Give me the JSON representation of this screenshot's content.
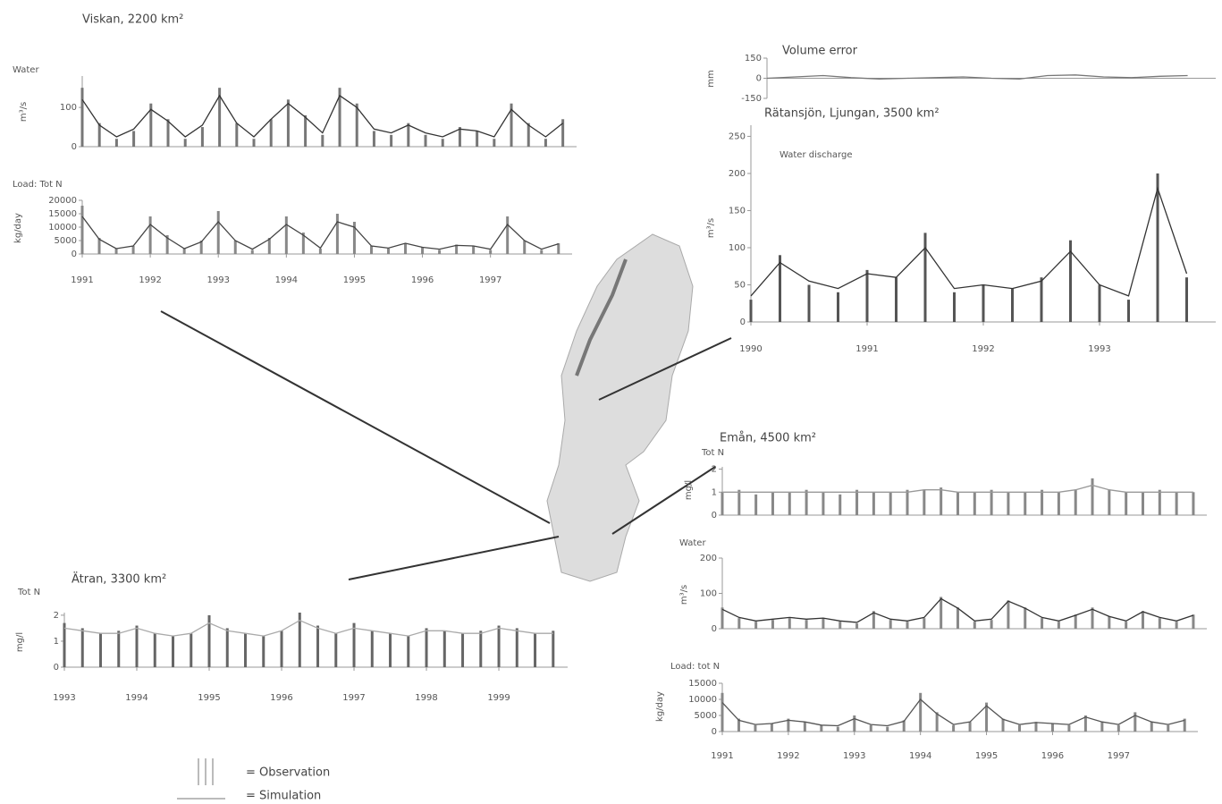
{
  "chart_data": [
    {
      "type": "line",
      "title": "Viskan, 2200 km²",
      "label": "Water",
      "ylabel": "m³/s",
      "xlim": [
        1991,
        1998.2
      ],
      "ylim": [
        0,
        180
      ],
      "yticks": [
        0,
        100
      ],
      "x": [
        1991,
        1991.25,
        1991.5,
        1991.75,
        1992,
        1992.25,
        1992.5,
        1992.75,
        1993,
        1993.25,
        1993.5,
        1993.75,
        1994,
        1994.25,
        1994.5,
        1994.75,
        1995,
        1995.25,
        1995.5,
        1995.75,
        1996,
        1996.25,
        1996.5,
        1996.75,
        1997,
        1997.25,
        1997.5,
        1997.75,
        1998
      ],
      "series": [
        {
          "style": "bars",
          "color": "#777777",
          "values": [
            150,
            60,
            20,
            40,
            110,
            70,
            20,
            50,
            150,
            60,
            20,
            70,
            120,
            80,
            30,
            150,
            110,
            40,
            30,
            60,
            30,
            20,
            50,
            40,
            20,
            110,
            60,
            20,
            70
          ]
        },
        {
          "style": "line",
          "color": "#333333",
          "values": [
            120,
            55,
            25,
            45,
            95,
            65,
            25,
            55,
            130,
            60,
            25,
            70,
            110,
            75,
            35,
            130,
            100,
            45,
            35,
            55,
            35,
            25,
            45,
            40,
            25,
            95,
            55,
            25,
            60
          ]
        }
      ]
    },
    {
      "type": "line",
      "label": "Load: Tot N",
      "ylabel": "kg/day",
      "xlim": [
        1991,
        1998.2
      ],
      "xticks": [
        1991,
        1992,
        1993,
        1994,
        1995,
        1996,
        1997
      ],
      "ylim": [
        0,
        20000
      ],
      "yticks": [
        0,
        5000,
        10000,
        15000,
        20000
      ],
      "x": [
        1991,
        1991.25,
        1991.5,
        1991.75,
        1992,
        1992.25,
        1992.5,
        1992.75,
        1993,
        1993.25,
        1993.5,
        1993.75,
        1994,
        1994.25,
        1994.5,
        1994.75,
        1995,
        1995.25,
        1995.5,
        1995.75,
        1996,
        1996.25,
        1996.5,
        1996.75,
        1997,
        1997.25,
        1997.5,
        1997.75,
        1998
      ],
      "series": [
        {
          "style": "bars",
          "color": "#888888",
          "values": [
            18000,
            6000,
            2000,
            3000,
            14000,
            7000,
            2000,
            5000,
            16000,
            5000,
            1500,
            6000,
            14000,
            8000,
            2000,
            15000,
            12000,
            3000,
            2000,
            4000,
            2500,
            1500,
            3500,
            3000,
            1500,
            14000,
            5000,
            1500,
            4000
          ]
        },
        {
          "style": "line",
          "color": "#444444",
          "values": [
            14000,
            5500,
            2000,
            3000,
            11000,
            6000,
            2000,
            4500,
            12000,
            5000,
            1800,
            5500,
            11000,
            7000,
            2200,
            12000,
            10000,
            3000,
            2200,
            4000,
            2500,
            1800,
            3200,
            3000,
            1800,
            11000,
            5000,
            1800,
            3800
          ]
        }
      ]
    },
    {
      "type": "line",
      "title": "Volume error",
      "ylabel": "mm",
      "xlim": [
        1990,
        1994
      ],
      "ylim": [
        -150,
        150
      ],
      "yticks": [
        -150,
        0,
        150
      ],
      "x": [
        1990,
        1990.25,
        1990.5,
        1990.75,
        1991,
        1991.25,
        1991.5,
        1991.75,
        1992,
        1992.25,
        1992.5,
        1992.75,
        1993,
        1993.25,
        1993.5,
        1993.75
      ],
      "series": [
        {
          "style": "line",
          "color": "#777777",
          "values": [
            0,
            10,
            20,
            5,
            -5,
            0,
            5,
            10,
            0,
            -5,
            20,
            25,
            10,
            5,
            15,
            20
          ]
        }
      ]
    },
    {
      "type": "line",
      "title": "Rätansjön, Ljungan, 3500 km²",
      "label": "Water discharge",
      "ylabel": "m³/s",
      "xlim": [
        1990,
        1994
      ],
      "xticks": [
        1990,
        1991,
        1992,
        1993
      ],
      "ylim": [
        0,
        265
      ],
      "yticks": [
        0,
        50,
        100,
        150,
        200,
        250
      ],
      "x": [
        1990,
        1990.25,
        1990.5,
        1990.75,
        1991,
        1991.25,
        1991.5,
        1991.75,
        1992,
        1992.25,
        1992.5,
        1992.75,
        1993,
        1993.25,
        1993.5,
        1993.75
      ],
      "series": [
        {
          "style": "bars",
          "color": "#555555",
          "values": [
            30,
            90,
            50,
            40,
            70,
            60,
            120,
            40,
            50,
            45,
            60,
            110,
            50,
            30,
            200,
            60
          ]
        },
        {
          "style": "line",
          "color": "#333333",
          "values": [
            35,
            80,
            55,
            45,
            65,
            60,
            100,
            45,
            50,
            45,
            55,
            95,
            50,
            35,
            180,
            65
          ]
        }
      ]
    },
    {
      "type": "line",
      "title": "Emån, 4500 km²",
      "label": "Tot N",
      "ylabel": "mg/l",
      "xlim": [
        1991,
        1998.2
      ],
      "ylim": [
        0,
        2.1
      ],
      "yticks": [
        0,
        1,
        2
      ],
      "x": [
        1991,
        1991.25,
        1991.5,
        1991.75,
        1992,
        1992.25,
        1992.5,
        1992.75,
        1993,
        1993.25,
        1993.5,
        1993.75,
        1994,
        1994.25,
        1994.5,
        1994.75,
        1995,
        1995.25,
        1995.5,
        1995.75,
        1996,
        1996.25,
        1996.5,
        1996.75,
        1997,
        1997.25,
        1997.5,
        1997.75,
        1998
      ],
      "series": [
        {
          "style": "bars",
          "color": "#888888",
          "values": [
            1.0,
            1.1,
            0.9,
            1.0,
            1.0,
            1.1,
            1.0,
            0.9,
            1.1,
            1.0,
            1.0,
            1.1,
            1.1,
            1.2,
            1.0,
            1.0,
            1.1,
            1.0,
            1.0,
            1.1,
            1.0,
            1.1,
            1.6,
            1.1,
            1.0,
            1.0,
            1.1,
            1.0,
            1.0
          ]
        },
        {
          "style": "line",
          "color": "#999999",
          "values": [
            1.0,
            1.0,
            1.0,
            1.0,
            1.0,
            1.0,
            1.0,
            1.0,
            1.0,
            1.0,
            1.0,
            1.0,
            1.1,
            1.1,
            1.0,
            1.0,
            1.0,
            1.0,
            1.0,
            1.0,
            1.0,
            1.1,
            1.3,
            1.1,
            1.0,
            1.0,
            1.0,
            1.0,
            1.0
          ]
        }
      ]
    },
    {
      "type": "line",
      "label": "Water",
      "ylabel": "m³/s",
      "xlim": [
        1991,
        1998.2
      ],
      "ylim": [
        0,
        200
      ],
      "yticks": [
        0,
        100,
        200
      ],
      "x": [
        1991,
        1991.25,
        1991.5,
        1991.75,
        1992,
        1992.25,
        1992.5,
        1992.75,
        1993,
        1993.25,
        1993.5,
        1993.75,
        1994,
        1994.25,
        1994.5,
        1994.75,
        1995,
        1995.25,
        1995.5,
        1995.75,
        1996,
        1996.25,
        1996.5,
        1996.75,
        1997,
        1997.25,
        1997.5,
        1997.75,
        1998
      ],
      "series": [
        {
          "style": "bars",
          "color": "#888888",
          "values": [
            60,
            30,
            20,
            25,
            30,
            25,
            30,
            20,
            15,
            50,
            25,
            20,
            30,
            90,
            60,
            20,
            25,
            80,
            60,
            30,
            20,
            40,
            60,
            35,
            20,
            50,
            30,
            20,
            40
          ]
        },
        {
          "style": "line",
          "color": "#333333",
          "values": [
            55,
            32,
            22,
            27,
            32,
            27,
            30,
            22,
            18,
            45,
            27,
            22,
            32,
            85,
            58,
            22,
            27,
            78,
            58,
            32,
            22,
            38,
            55,
            35,
            22,
            48,
            32,
            22,
            38
          ]
        }
      ]
    },
    {
      "type": "line",
      "label": "Load: tot N",
      "ylabel": "kg/day",
      "xlim": [
        1991,
        1998.2
      ],
      "xticks": [
        1991,
        1992,
        1993,
        1994,
        1995,
        1996,
        1997
      ],
      "ylim": [
        0,
        15000
      ],
      "yticks": [
        0,
        5000,
        10000,
        15000
      ],
      "x": [
        1991,
        1991.25,
        1991.5,
        1991.75,
        1992,
        1992.25,
        1992.5,
        1992.75,
        1993,
        1993.25,
        1993.5,
        1993.75,
        1994,
        1994.25,
        1994.5,
        1994.75,
        1995,
        1995.25,
        1995.5,
        1995.75,
        1996,
        1996.25,
        1996.5,
        1996.75,
        1997,
        1997.25,
        1997.5,
        1997.75,
        1998
      ],
      "series": [
        {
          "style": "bars",
          "color": "#888888",
          "values": [
            12000,
            4000,
            2000,
            2500,
            4000,
            3000,
            2000,
            1500,
            5000,
            2000,
            1500,
            3500,
            12000,
            6000,
            2000,
            3000,
            9000,
            4000,
            2000,
            3000,
            2500,
            2000,
            5000,
            3000,
            2000,
            6000,
            3000,
            2000,
            4000
          ]
        },
        {
          "style": "line",
          "color": "#555555",
          "values": [
            9000,
            3500,
            2200,
            2500,
            3500,
            3000,
            2000,
            1800,
            4000,
            2200,
            1800,
            3200,
            10000,
            5500,
            2200,
            3000,
            8000,
            3800,
            2200,
            2800,
            2500,
            2200,
            4500,
            3000,
            2200,
            5000,
            3000,
            2200,
            3500
          ]
        }
      ]
    },
    {
      "type": "line",
      "title": "Ätran, 3300 km²",
      "label": "Tot N",
      "ylabel": "mg/l",
      "xlim": [
        1993,
        1999.95
      ],
      "xticks": [
        1993,
        1994,
        1995,
        1996,
        1997,
        1998,
        1999
      ],
      "ylim": [
        0,
        2.1
      ],
      "yticks": [
        0,
        1,
        2
      ],
      "x": [
        1993,
        1993.25,
        1993.5,
        1993.75,
        1994,
        1994.25,
        1994.5,
        1994.75,
        1995,
        1995.25,
        1995.5,
        1995.75,
        1996,
        1996.25,
        1996.5,
        1996.75,
        1997,
        1997.25,
        1997.5,
        1997.75,
        1998,
        1998.25,
        1998.5,
        1998.75,
        1999,
        1999.25,
        1999.5,
        1999.75
      ],
      "series": [
        {
          "style": "bars",
          "color": "#666666",
          "values": [
            1.7,
            1.5,
            1.3,
            1.4,
            1.6,
            1.3,
            1.2,
            1.3,
            2.0,
            1.5,
            1.3,
            1.2,
            1.4,
            2.1,
            1.6,
            1.3,
            1.7,
            1.4,
            1.3,
            1.2,
            1.5,
            1.4,
            1.3,
            1.4,
            1.6,
            1.5,
            1.3,
            1.4
          ]
        },
        {
          "style": "line",
          "color": "#aaaaaa",
          "values": [
            1.5,
            1.4,
            1.3,
            1.3,
            1.5,
            1.3,
            1.2,
            1.3,
            1.7,
            1.4,
            1.3,
            1.2,
            1.4,
            1.8,
            1.5,
            1.3,
            1.5,
            1.4,
            1.3,
            1.2,
            1.4,
            1.4,
            1.3,
            1.3,
            1.5,
            1.4,
            1.3,
            1.3
          ]
        }
      ]
    }
  ],
  "legend": {
    "observation": "= Observation",
    "simulation": "= Simulation"
  }
}
